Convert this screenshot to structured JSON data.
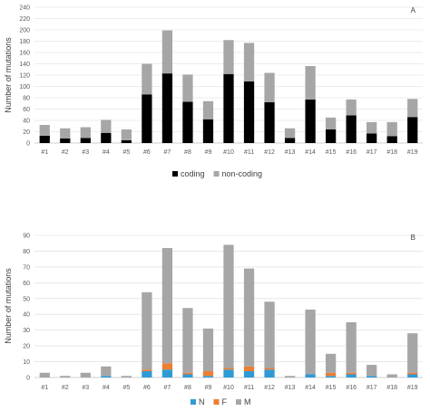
{
  "chart_data": [
    {
      "type": "bar",
      "stacked": true,
      "panel_label": "A",
      "ylabel": "Number of mutations",
      "ylim": [
        0,
        240
      ],
      "yticks": [
        0,
        20,
        40,
        60,
        80,
        100,
        120,
        140,
        160,
        180,
        200,
        220,
        240
      ],
      "grid": true,
      "legend_position": "bottom",
      "categories": [
        "#1",
        "#2",
        "#3",
        "#4",
        "#5",
        "#6",
        "#7",
        "#8",
        "#9",
        "#10",
        "#11",
        "#12",
        "#13",
        "#14",
        "#15",
        "#16",
        "#17",
        "#18",
        "#19"
      ],
      "series": [
        {
          "name": "coding",
          "color": "#000000",
          "values": [
            13,
            8,
            9,
            18,
            5,
            86,
            123,
            73,
            42,
            122,
            109,
            72,
            9,
            77,
            24,
            49,
            17,
            12,
            46
          ]
        },
        {
          "name": "non-coding",
          "color": "#a6a6a6",
          "values": [
            19,
            18,
            19,
            23,
            19,
            54,
            76,
            48,
            32,
            60,
            68,
            52,
            17,
            59,
            21,
            28,
            20,
            25,
            32
          ]
        }
      ]
    },
    {
      "type": "bar",
      "stacked": true,
      "panel_label": "B",
      "ylabel": "Number of mutations",
      "ylim": [
        0,
        90
      ],
      "yticks": [
        0,
        10,
        20,
        30,
        40,
        50,
        60,
        70,
        80,
        90
      ],
      "grid": true,
      "legend_position": "bottom",
      "categories": [
        "#1",
        "#2",
        "#3",
        "#4",
        "#5",
        "#6",
        "#7",
        "#8",
        "#9",
        "#10",
        "#11",
        "#12",
        "#13",
        "#14",
        "#15",
        "#16",
        "#17",
        "#18",
        "#19"
      ],
      "series": [
        {
          "name": "N",
          "color": "#2e9bd6",
          "values": [
            0,
            0,
            0,
            1,
            0,
            4,
            5,
            2,
            1,
            5,
            4,
            5,
            0,
            2,
            1,
            2,
            1,
            0,
            2
          ]
        },
        {
          "name": "F",
          "color": "#ed7d31",
          "values": [
            0,
            0,
            0,
            0,
            0,
            1,
            4,
            1,
            3,
            1,
            3,
            1,
            0,
            0,
            2,
            1,
            0,
            0,
            1
          ]
        },
        {
          "name": "M",
          "color": "#a6a6a6",
          "values": [
            3,
            1,
            3,
            6,
            1,
            49,
            73,
            41,
            27,
            78,
            62,
            42,
            1,
            41,
            12,
            32,
            7,
            2,
            25
          ]
        }
      ]
    }
  ]
}
